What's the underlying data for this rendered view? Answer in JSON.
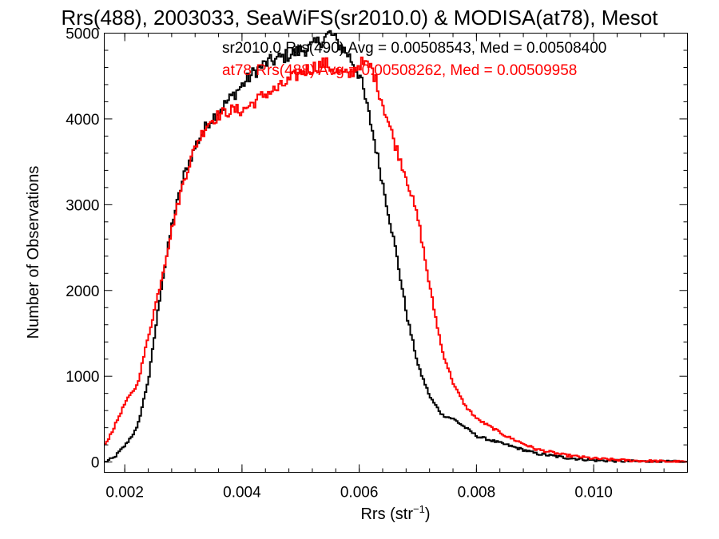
{
  "chart_data": {
    "type": "line",
    "title": "Rrs(488), 2003033, SeaWiFS(sr2010.0) & MODISA(at78), Mesot",
    "xlabel": "Rrs (str",
    "xlabel_sup": "−1",
    "xlabel_close": ")",
    "ylabel": "Number of Observations",
    "xlim": [
      0.00165,
      0.0116
    ],
    "ylim": [
      -120,
      5000
    ],
    "x_ticks": [
      0.002,
      0.004,
      0.006,
      0.008,
      0.01
    ],
    "x_tick_labels": [
      "0.002",
      "0.004",
      "0.006",
      "0.008",
      "0.010"
    ],
    "y_ticks": [
      0,
      1000,
      2000,
      3000,
      4000,
      5000
    ],
    "y_tick_labels": [
      "0",
      "1000",
      "2000",
      "3000",
      "4000",
      "5000"
    ],
    "legend": [
      {
        "text": "sr2010.0 Rrs(490) Avg = 0.00508543, Med = 0.00508400",
        "color": "#000000"
      },
      {
        "text": "at78 Rrs(488) Avg = 0.00508262, Med = 0.00509958",
        "color": "#ff0000"
      }
    ],
    "legend_placement": "top-right",
    "series": [
      {
        "color": "#000000",
        "x": [
          0.00165,
          0.0018,
          0.002,
          0.0022,
          0.0024,
          0.0026,
          0.0028,
          0.003,
          0.0032,
          0.0034,
          0.0036,
          0.0038,
          0.004,
          0.0042,
          0.0044,
          0.0046,
          0.0048,
          0.005,
          0.0052,
          0.0054,
          0.0055,
          0.0056,
          0.0058,
          0.006,
          0.0062,
          0.0064,
          0.0066,
          0.0068,
          0.007,
          0.0072,
          0.0074,
          0.0076,
          0.0078,
          0.008,
          0.0085,
          0.009,
          0.0095,
          0.01,
          0.0105,
          0.011,
          0.0116
        ],
        "values": [
          0,
          50,
          200,
          400,
          1000,
          2000,
          2800,
          3350,
          3700,
          3950,
          4100,
          4250,
          4400,
          4550,
          4650,
          4700,
          4750,
          4800,
          4850,
          4950,
          5000,
          4900,
          4750,
          4500,
          3900,
          3200,
          2500,
          1700,
          1100,
          750,
          550,
          500,
          400,
          300,
          200,
          100,
          50,
          20,
          10,
          5,
          0
        ]
      },
      {
        "color": "#ff0000",
        "x": [
          0.00165,
          0.0018,
          0.002,
          0.0022,
          0.0024,
          0.0026,
          0.0028,
          0.003,
          0.0032,
          0.0034,
          0.0036,
          0.0038,
          0.004,
          0.0042,
          0.0044,
          0.0046,
          0.0048,
          0.005,
          0.0052,
          0.0054,
          0.0056,
          0.0058,
          0.006,
          0.0062,
          0.0064,
          0.0066,
          0.0068,
          0.007,
          0.0072,
          0.0074,
          0.0076,
          0.0078,
          0.008,
          0.0085,
          0.009,
          0.0095,
          0.01,
          0.0105,
          0.011,
          0.0116
        ],
        "values": [
          200,
          400,
          700,
          900,
          1500,
          2100,
          2750,
          3300,
          3700,
          3950,
          4050,
          4100,
          4100,
          4200,
          4300,
          4350,
          4450,
          4550,
          4600,
          4650,
          4550,
          4500,
          4650,
          4600,
          4150,
          3700,
          3300,
          2800,
          2000,
          1300,
          900,
          650,
          500,
          300,
          150,
          80,
          40,
          20,
          10,
          0
        ]
      }
    ]
  }
}
